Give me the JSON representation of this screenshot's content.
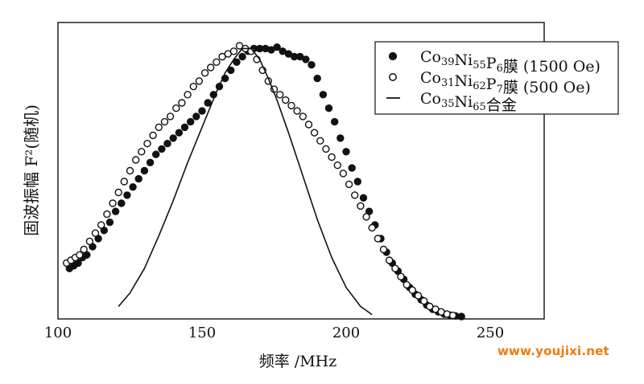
{
  "watermark": "www.youjixi.net",
  "chart_data": {
    "type": "scatter",
    "title": "",
    "xlabel": "频率 /MHz",
    "ylabel": "固波振幅  F²(随机)",
    "xlim": [
      100,
      270
    ],
    "xticks": [
      "100",
      "150",
      "200",
      "250"
    ],
    "grid": false,
    "legend": {
      "placement": "top-right",
      "entries": [
        {
          "series_index": 0,
          "label_parts": [
            [
              "Co",
              ""
            ],
            [
              "39",
              "sub"
            ],
            [
              "Ni",
              ""
            ],
            [
              "55",
              "sub"
            ],
            [
              "P",
              ""
            ],
            [
              "6",
              "sub"
            ],
            [
              "膜 (1500 Oe)",
              ""
            ]
          ]
        },
        {
          "series_index": 1,
          "label_parts": [
            [
              "Co",
              ""
            ],
            [
              "31",
              "sub"
            ],
            [
              "Ni",
              ""
            ],
            [
              "62",
              "sub"
            ],
            [
              "P",
              ""
            ],
            [
              "7",
              "sub"
            ],
            [
              "膜 (500 Oe)",
              ""
            ]
          ]
        },
        {
          "series_index": 2,
          "label_parts": [
            [
              "Co",
              ""
            ],
            [
              "35",
              "sub"
            ],
            [
              "Ni",
              ""
            ],
            [
              "65",
              "sub"
            ],
            [
              "合金",
              ""
            ]
          ]
        }
      ]
    },
    "series": [
      {
        "name": "Co39Ni55P6膜 (1500 Oe)",
        "style": "filled-circle",
        "color": "#111111",
        "x": [
          104,
          105.5,
          107,
          108.5,
          110,
          112,
          114,
          116,
          118,
          120,
          122,
          124,
          126,
          128,
          130,
          132,
          134,
          136,
          138,
          140,
          142,
          144,
          146,
          148,
          150,
          152,
          154,
          156,
          158,
          160,
          162,
          164,
          166,
          168,
          170,
          172,
          174,
          176,
          178,
          180,
          182,
          184,
          186,
          188,
          190,
          192,
          194,
          196,
          198,
          200,
          202,
          204,
          206,
          208,
          210,
          212,
          214,
          216,
          218,
          220,
          222,
          224,
          226,
          228,
          230,
          232,
          234,
          236,
          238,
          240
        ],
        "y": [
          0.18,
          0.19,
          0.2,
          0.22,
          0.23,
          0.26,
          0.29,
          0.32,
          0.35,
          0.39,
          0.42,
          0.45,
          0.48,
          0.51,
          0.54,
          0.57,
          0.6,
          0.62,
          0.64,
          0.66,
          0.68,
          0.7,
          0.72,
          0.74,
          0.76,
          0.79,
          0.82,
          0.85,
          0.88,
          0.91,
          0.94,
          0.96,
          0.98,
          0.99,
          0.99,
          0.99,
          0.985,
          0.995,
          0.98,
          0.97,
          0.96,
          0.96,
          0.95,
          0.93,
          0.88,
          0.82,
          0.77,
          0.72,
          0.66,
          0.61,
          0.55,
          0.5,
          0.44,
          0.39,
          0.34,
          0.29,
          0.24,
          0.2,
          0.17,
          0.14,
          0.11,
          0.085,
          0.065,
          0.045,
          0.03,
          0.02,
          0.012,
          0.008,
          0.005,
          0.003
        ]
      },
      {
        "name": "Co31Ni62P7膜 (500 Oe)",
        "style": "open-circle",
        "color": "#111111",
        "x": [
          103,
          104.5,
          106,
          107.5,
          109,
          111,
          113,
          115,
          117,
          119,
          121,
          123,
          125,
          127,
          129,
          131,
          133,
          135,
          137,
          139,
          141,
          143,
          145,
          147,
          149,
          151,
          153,
          155,
          157,
          159,
          161,
          163,
          165,
          167,
          169,
          171,
          173,
          175,
          177,
          179,
          181,
          183,
          185,
          187,
          189,
          191,
          193,
          195,
          197,
          199,
          201,
          203,
          205,
          207,
          209,
          211,
          213,
          215,
          217,
          219,
          221,
          223,
          225,
          227,
          229,
          231,
          233,
          235,
          237
        ],
        "y": [
          0.2,
          0.21,
          0.22,
          0.23,
          0.25,
          0.28,
          0.31,
          0.34,
          0.38,
          0.42,
          0.46,
          0.5,
          0.54,
          0.58,
          0.61,
          0.64,
          0.67,
          0.7,
          0.72,
          0.74,
          0.77,
          0.79,
          0.82,
          0.85,
          0.87,
          0.9,
          0.92,
          0.94,
          0.96,
          0.97,
          0.98,
          1.0,
          0.99,
          0.98,
          0.95,
          0.91,
          0.87,
          0.84,
          0.82,
          0.8,
          0.78,
          0.76,
          0.74,
          0.71,
          0.68,
          0.65,
          0.62,
          0.59,
          0.56,
          0.53,
          0.49,
          0.45,
          0.41,
          0.37,
          0.33,
          0.29,
          0.25,
          0.21,
          0.18,
          0.15,
          0.12,
          0.1,
          0.08,
          0.06,
          0.04,
          0.03,
          0.02,
          0.012,
          0.007
        ]
      },
      {
        "name": "Co35Ni65合金",
        "style": "line",
        "color": "#111111",
        "x": [
          121,
          125,
          130,
          135,
          140,
          145,
          150,
          155,
          158,
          161,
          164,
          167,
          170,
          173,
          176,
          180,
          185,
          190,
          195,
          200,
          205,
          209
        ],
        "y": [
          0.04,
          0.09,
          0.18,
          0.3,
          0.43,
          0.57,
          0.7,
          0.83,
          0.9,
          0.95,
          0.99,
          0.99,
          0.95,
          0.88,
          0.8,
          0.68,
          0.52,
          0.36,
          0.22,
          0.11,
          0.04,
          0.01
        ]
      }
    ]
  }
}
